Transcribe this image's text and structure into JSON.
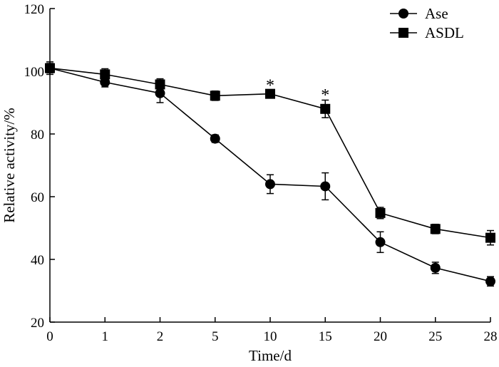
{
  "chart_data": {
    "type": "line",
    "title": "",
    "xlabel": "Time/d",
    "ylabel": "Relative activity/%",
    "categories": [
      "0",
      "1",
      "2",
      "5",
      "10",
      "15",
      "20",
      "25",
      "28"
    ],
    "ylim": [
      20,
      120
    ],
    "yticks": [
      20,
      40,
      60,
      80,
      100,
      120
    ],
    "legend_position": "top-right",
    "series": [
      {
        "name": "Ase",
        "marker": "circle",
        "values": [
          101,
          96.5,
          93,
          78.5,
          64,
          63.3,
          45.5,
          37.3,
          33
        ],
        "errors": [
          2,
          1.5,
          3,
          1.2,
          3,
          4.3,
          3.3,
          1.8,
          1.5
        ]
      },
      {
        "name": "ASDL",
        "marker": "square",
        "values": [
          101,
          99,
          95.8,
          92.2,
          92.8,
          88,
          54.8,
          49.7,
          46.9
        ],
        "errors": [
          1.5,
          1.8,
          1.8,
          1.5,
          1.2,
          2.8,
          1.8,
          1.5,
          2.3
        ]
      }
    ],
    "annotations": [
      {
        "text": "*",
        "category": "10",
        "value": 96
      },
      {
        "text": "*",
        "category": "15",
        "value": 93
      }
    ]
  }
}
